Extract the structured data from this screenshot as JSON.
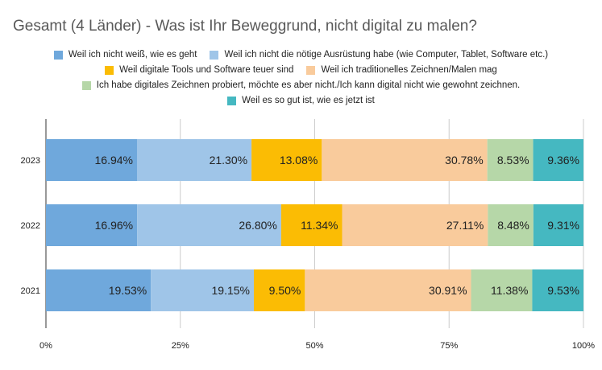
{
  "title": "Gesamt (4 Länder) - Was ist Ihr Beweggrund, nicht digital zu malen?",
  "chart_data": {
    "type": "bar",
    "orientation": "horizontal",
    "stacked": "percent",
    "title": "Gesamt (4 Länder) - Was ist Ihr Beweggrund, nicht digital zu malen?",
    "categories": [
      "2023",
      "2022",
      "2021"
    ],
    "xlim": [
      0,
      100
    ],
    "x_ticks": [
      "0%",
      "25%",
      "50%",
      "75%",
      "100%"
    ],
    "grid": true,
    "legend_position": "top",
    "series": [
      {
        "name": "Weil ich nicht weiß, wie es geht",
        "color": "#6fa8dc",
        "values": [
          16.94,
          16.96,
          19.53
        ],
        "labels": [
          "16.94%",
          "16.96%",
          "19.53%"
        ]
      },
      {
        "name": "Weil ich nicht die nötige Ausrüstung habe (wie Computer, Tablet, Software etc.)",
        "color": "#9fc5e8",
        "values": [
          21.3,
          26.8,
          19.15
        ],
        "labels": [
          "21.30%",
          "26.80%",
          "19.15%"
        ]
      },
      {
        "name": "Weil digitale Tools und Software teuer sind",
        "color": "#fbbc04",
        "values": [
          13.08,
          11.34,
          9.5
        ],
        "labels": [
          "13.08%",
          "11.34%",
          "9.50%"
        ]
      },
      {
        "name": "Weil ich traditionelles Zeichnen/Malen mag",
        "color": "#f9cb9c",
        "values": [
          30.78,
          27.11,
          30.91
        ],
        "labels": [
          "30.78%",
          "27.11%",
          "30.91%"
        ]
      },
      {
        "name": "Ich habe digitales Zeichnen probiert, möchte es aber nicht./Ich kann digital nicht wie gewohnt zeichnen.",
        "color": "#b6d7a8",
        "values": [
          8.53,
          8.48,
          11.38
        ],
        "labels": [
          "8.53%",
          "8.48%",
          "11.38%"
        ]
      },
      {
        "name": "Weil es so gut ist, wie es jetzt ist",
        "color": "#45b8c1",
        "values": [
          9.36,
          9.31,
          9.53
        ],
        "labels": [
          "9.36%",
          "9.31%",
          "9.53%"
        ]
      }
    ]
  }
}
